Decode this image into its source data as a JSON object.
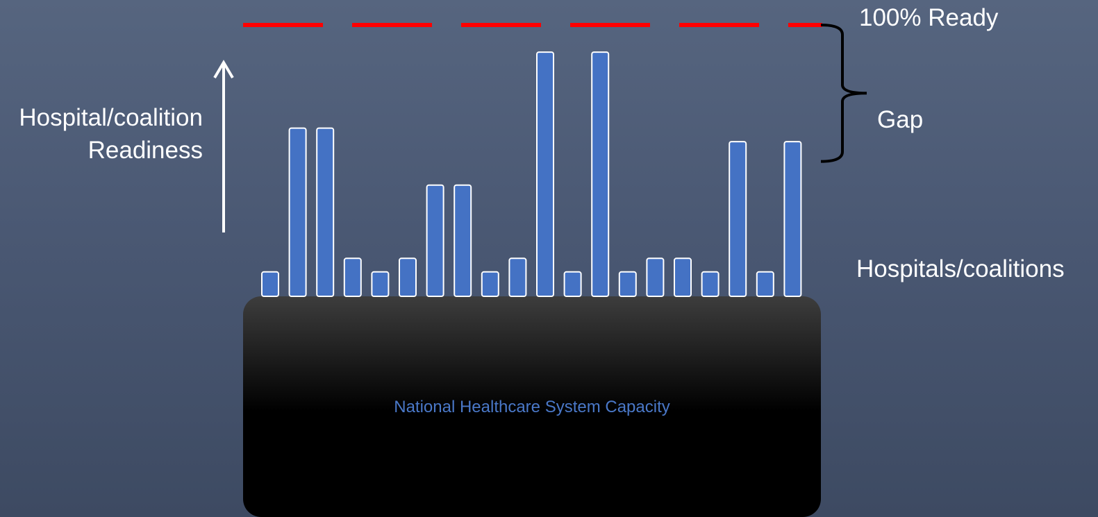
{
  "labels": {
    "axis": "Hospital/coalition Readiness",
    "target": "100% Ready",
    "gap": "Gap",
    "items": "Hospitals/coalitions",
    "base": "National Healthcare System Capacity"
  },
  "colors": {
    "bar_fill": "#4472c4",
    "bar_outline": "#ffffff",
    "target_line": "#ff0000",
    "bracket": "#000000",
    "arrow": "#ffffff",
    "caption": "#4a78c8"
  },
  "icons": [
    "up-arrow-icon",
    "curly-brace-icon"
  ],
  "chart_data": {
    "type": "bar",
    "title": "",
    "xlabel": "Hospitals/coalitions",
    "ylabel": "Hospital/coalition Readiness",
    "ylim": [
      0,
      100
    ],
    "target": {
      "value": 100,
      "label": "100% Ready"
    },
    "gap": {
      "from": 62,
      "to": 100,
      "label": "Gap"
    },
    "values": [
      9,
      62,
      62,
      14,
      9,
      14,
      41,
      41,
      9,
      14,
      90,
      9,
      90,
      9,
      14,
      14,
      9,
      57,
      9,
      57
    ]
  }
}
